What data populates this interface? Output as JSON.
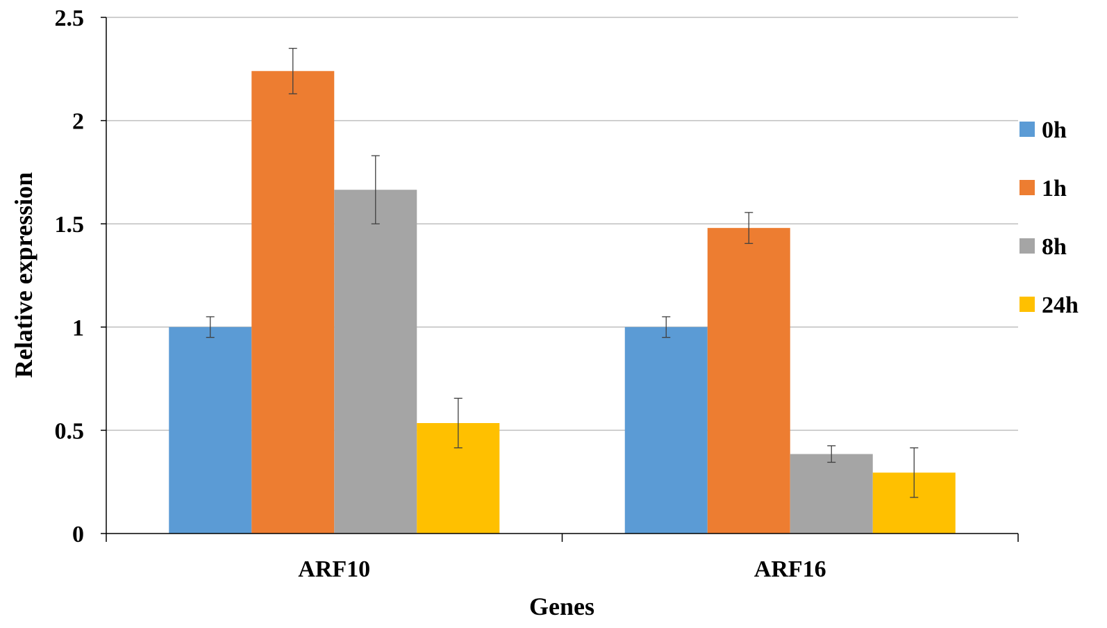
{
  "chart_data": {
    "type": "bar",
    "categories": [
      "ARF10",
      "ARF16"
    ],
    "series": [
      {
        "name": "0h",
        "color": "#5b9bd5",
        "values": [
          1.0,
          1.0
        ],
        "errors": [
          0.05,
          0.05
        ]
      },
      {
        "name": "1h",
        "color": "#ed7d31",
        "values": [
          2.24,
          1.48
        ],
        "errors": [
          0.11,
          0.075
        ]
      },
      {
        "name": "8h",
        "color": "#a5a5a5",
        "values": [
          1.665,
          0.385
        ],
        "errors": [
          0.165,
          0.04
        ]
      },
      {
        "name": "24h",
        "color": "#ffc000",
        "values": [
          0.535,
          0.295
        ],
        "errors": [
          0.12,
          0.12
        ]
      }
    ],
    "xlabel": "Genes",
    "ylabel": "Relative expression",
    "ylim": [
      0,
      2.5
    ],
    "yticks": [
      "0",
      "0.5",
      "1",
      "1.5",
      "2",
      "2.5"
    ],
    "grid": true,
    "legend_position": "right"
  }
}
